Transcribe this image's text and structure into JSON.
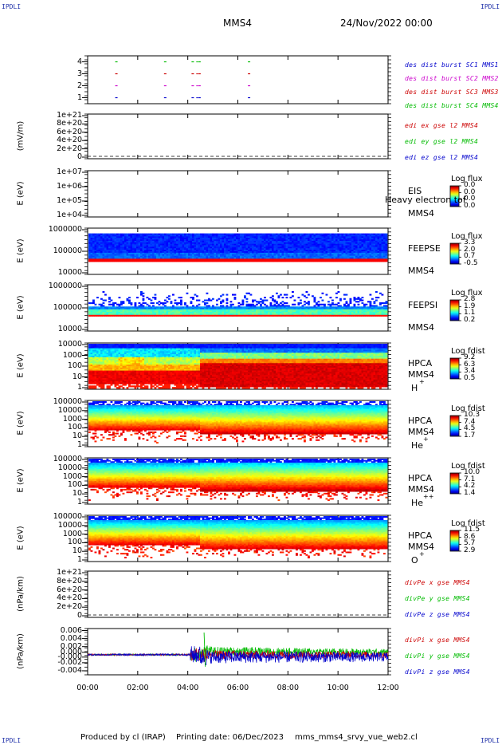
{
  "corners": {
    "tl": "IPDLI",
    "tr": "IPDLI",
    "bl": "IPDLI",
    "br": "IPDLI"
  },
  "header": {
    "spacecraft": "MMS4",
    "date": "24/Nov/2022 00:00"
  },
  "footer": {
    "produced": "Produced by cl (IRAP)",
    "printing": "Printing date: 06/Dec/2023",
    "file": "mms_mms4_srvy_vue_web2.cl"
  },
  "colors": {
    "blue": "#0000cc",
    "magenta": "#cc00cc",
    "red": "#cc0000",
    "green": "#00bb00"
  },
  "chart_data": [
    {
      "type": "scatter",
      "id": "burst",
      "ylim": [
        0.5,
        4.5
      ],
      "yticks": [
        "1",
        "2",
        "3",
        "4"
      ],
      "legend": [
        {
          "name": "des dist burst SC1 MMS1",
          "color": "#0000cc"
        },
        {
          "name": "des dist burst SC2 MMS2",
          "color": "#cc00cc"
        },
        {
          "name": "des dist burst SC3 MMS3",
          "color": "#cc0000"
        },
        {
          "name": "des dist burst SC4 MMS4",
          "color": "#00bb00"
        }
      ],
      "events_hours": [
        1.1,
        3.05,
        4.15,
        4.42,
        6.4
      ]
    },
    {
      "type": "line",
      "id": "edi",
      "ylabel": "(mV/m)",
      "yticks": [
        "0",
        "2e+20",
        "4e+20",
        "6e+20",
        "8e+20",
        "1e+21"
      ],
      "legend": [
        {
          "name": "edi ex gse l2 MMS4",
          "color": "#cc0000"
        },
        {
          "name": "edi ey gse l2 MMS4",
          "color": "#00bb00"
        },
        {
          "name": "edi ez gse l2 MMS4",
          "color": "#0000cc"
        }
      ]
    },
    {
      "type": "heatmap",
      "id": "eis",
      "ylabel": "E (eV)",
      "yticks": [
        "1e+04",
        "1e+05",
        "1e+06",
        "1e+07"
      ],
      "instrument": [
        "EIS",
        "MMS4"
      ],
      "overlay": "Heavy electron tof",
      "cbar_title": "Log flux",
      "cbar_values": [
        "0.0",
        "0.0",
        "0.0",
        "0.0"
      ]
    },
    {
      "type": "heatmap",
      "id": "feepse",
      "ylabel": "E (eV)",
      "yticks": [
        "10000",
        "100000",
        "1000000"
      ],
      "instrument": [
        "FEEPSE",
        "MMS4"
      ],
      "cbar_title": "Log flux",
      "cbar_values": [
        "3.3",
        "2.0",
        "0.7",
        "-0.5"
      ]
    },
    {
      "type": "heatmap",
      "id": "feepsi",
      "ylabel": "E (eV)",
      "yticks": [
        "10000",
        "100000",
        "1000000"
      ],
      "instrument": [
        "FEEPSI",
        "MMS4"
      ],
      "cbar_title": "Log flux",
      "cbar_values": [
        "2.8",
        "1.9",
        "1.1",
        "0.2"
      ]
    },
    {
      "type": "heatmap",
      "id": "hpca_h",
      "ylabel": "E (eV)",
      "yticks": [
        "1",
        "10",
        "100",
        "1000",
        "10000"
      ],
      "instrument": [
        "HPCA",
        "MMS4",
        "H",
        "+"
      ],
      "cbar_title": "Log fdist",
      "cbar_values": [
        "9.2",
        "6.3",
        "3.4",
        "0.5"
      ]
    },
    {
      "type": "heatmap",
      "id": "hpca_he",
      "ylabel": "E (eV)",
      "yticks": [
        "1",
        "10",
        "100",
        "1000",
        "10000",
        "100000"
      ],
      "instrument": [
        "HPCA",
        "MMS4",
        "He",
        "+"
      ],
      "cbar_title": "Log fdist",
      "cbar_values": [
        "10.3",
        "7.4",
        "4.5",
        "1.7"
      ]
    },
    {
      "type": "heatmap",
      "id": "hpca_hepp",
      "ylabel": "E (eV)",
      "yticks": [
        "1",
        "10",
        "100",
        "1000",
        "10000",
        "100000"
      ],
      "instrument": [
        "HPCA",
        "MMS4",
        "He",
        "++"
      ],
      "cbar_title": "Log fdist",
      "cbar_values": [
        "10.0",
        "7.1",
        "4.2",
        "1.4"
      ]
    },
    {
      "type": "heatmap",
      "id": "hpca_o",
      "ylabel": "E (eV)",
      "yticks": [
        "1",
        "10",
        "100",
        "1000",
        "10000",
        "100000"
      ],
      "instrument": [
        "HPCA",
        "MMS4",
        "O",
        "+"
      ],
      "cbar_title": "Log fdist",
      "cbar_values": [
        "11.5",
        "8.6",
        "5.7",
        "2.9"
      ]
    },
    {
      "type": "line",
      "id": "divpe",
      "ylabel": "(nPa/km)",
      "yticks": [
        "0",
        "2e+20",
        "4e+20",
        "6e+20",
        "8e+20",
        "1e+21"
      ],
      "legend": [
        {
          "name": "divPe x gse MMS4",
          "color": "#cc0000"
        },
        {
          "name": "divPe y gse MMS4",
          "color": "#00bb00"
        },
        {
          "name": "divPe z gse MMS4",
          "color": "#0000cc"
        }
      ]
    },
    {
      "type": "line",
      "id": "divpi",
      "ylabel": "(nPa/km)",
      "ylim": [
        -0.005,
        0.0065
      ],
      "yticks": [
        "-0.004",
        "-0.002",
        "-0.000",
        "0.000",
        "0.002",
        "0.004",
        "0.006"
      ],
      "legend": [
        {
          "name": "divPi x gse MMS4",
          "color": "#cc0000"
        },
        {
          "name": "divPi y gse MMS4",
          "color": "#00bb00"
        },
        {
          "name": "divPi z gse MMS4",
          "color": "#0000cc"
        }
      ]
    }
  ],
  "xaxis": {
    "xlim": [
      0,
      12
    ],
    "ticks": [
      "00:00",
      "02:00",
      "04:00",
      "06:00",
      "08:00",
      "10:00",
      "12:00"
    ]
  }
}
